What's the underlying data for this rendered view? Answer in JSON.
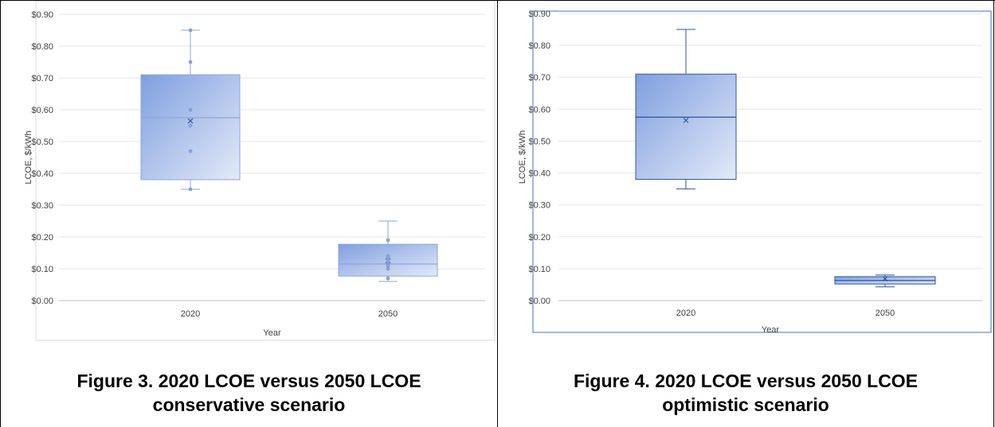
{
  "figures": [
    {
      "caption_line1": "Figure 3. 2020 LCOE versus 2050 LCOE",
      "caption_line2": "conservative scenario"
    },
    {
      "caption_line1": "Figure 4. 2020 LCOE versus 2050 LCOE",
      "caption_line2": "optimistic scenario"
    }
  ],
  "chart_data": [
    {
      "type": "box",
      "xlabel": "Year",
      "ylabel": "LCOE, $/kWh",
      "ylim": [
        0,
        0.9
      ],
      "yticks": [
        "$0.00",
        "$0.10",
        "$0.20",
        "$0.30",
        "$0.40",
        "$0.50",
        "$0.60",
        "$0.70",
        "$0.80",
        "$0.90"
      ],
      "categories": [
        "2020",
        "2050"
      ],
      "boxes": [
        {
          "category": "2020",
          "min": 0.35,
          "q1": 0.38,
          "median": 0.575,
          "q3": 0.71,
          "max": 0.85,
          "mean": 0.565,
          "points": [
            0.35,
            0.47,
            0.55,
            0.6,
            0.75,
            0.85
          ]
        },
        {
          "category": "2050",
          "min": 0.06,
          "q1": 0.077,
          "median": 0.115,
          "q3": 0.177,
          "max": 0.25,
          "mean": 0.125,
          "points": [
            0.07,
            0.1,
            0.11,
            0.12,
            0.13,
            0.14,
            0.19
          ]
        }
      ],
      "grid": true,
      "box_color": "#4472C4"
    },
    {
      "type": "box",
      "xlabel": "Year",
      "ylabel": "LCOE, $/kWh",
      "ylim": [
        0,
        0.9
      ],
      "yticks": [
        "$0.00",
        "$0.10",
        "$0.20",
        "$0.30",
        "$0.40",
        "$0.50",
        "$0.60",
        "$0.70",
        "$0.80",
        "$0.90"
      ],
      "categories": [
        "2020",
        "2050"
      ],
      "boxes": [
        {
          "category": "2020",
          "min": 0.35,
          "q1": 0.38,
          "median": 0.575,
          "q3": 0.71,
          "max": 0.85,
          "mean": 0.565,
          "points": []
        },
        {
          "category": "2050",
          "min": 0.043,
          "q1": 0.052,
          "median": 0.063,
          "q3": 0.075,
          "max": 0.08,
          "mean": 0.068,
          "points": []
        }
      ],
      "grid": true,
      "box_color": "#4472C4"
    }
  ]
}
